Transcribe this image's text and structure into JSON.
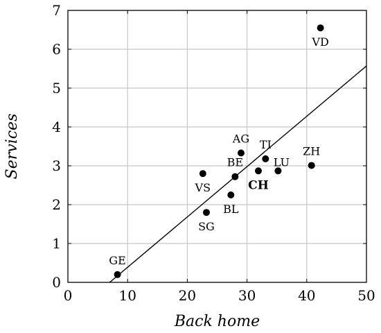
{
  "chart_data": {
    "type": "scatter",
    "title": "",
    "xlabel": "Back home",
    "ylabel": "Services",
    "xlim": [
      0,
      50
    ],
    "ylim": [
      0,
      7
    ],
    "xticks": [
      0,
      10,
      20,
      30,
      40,
      50
    ],
    "yticks": [
      0,
      1,
      2,
      3,
      4,
      5,
      6,
      7
    ],
    "grid": true,
    "points": [
      {
        "label": "GE",
        "x": 8.3,
        "y": 0.2,
        "bold": false,
        "label_pos": "above"
      },
      {
        "label": "SG",
        "x": 23.2,
        "y": 1.8,
        "bold": false,
        "label_pos": "below"
      },
      {
        "label": "BL",
        "x": 27.3,
        "y": 2.25,
        "bold": false,
        "label_pos": "below"
      },
      {
        "label": "VS",
        "x": 22.6,
        "y": 2.8,
        "bold": false,
        "label_pos": "below"
      },
      {
        "label": "BE",
        "x": 28.0,
        "y": 2.72,
        "bold": false,
        "label_pos": "above"
      },
      {
        "label": "CH",
        "x": 31.9,
        "y": 2.87,
        "bold": true,
        "label_pos": "below"
      },
      {
        "label": "LU",
        "x": 35.2,
        "y": 2.87,
        "bold": false,
        "label_pos": "above-right"
      },
      {
        "label": "TI",
        "x": 33.1,
        "y": 3.18,
        "bold": false,
        "label_pos": "above"
      },
      {
        "label": "AG",
        "x": 29.0,
        "y": 3.33,
        "bold": false,
        "label_pos": "above"
      },
      {
        "label": "ZH",
        "x": 40.8,
        "y": 3.01,
        "bold": false,
        "label_pos": "above"
      },
      {
        "label": "VD",
        "x": 42.3,
        "y": 6.55,
        "bold": false,
        "label_pos": "below"
      }
    ],
    "trend_line": {
      "x": [
        7.0,
        50.0
      ],
      "y": [
        0.0,
        5.57
      ]
    }
  }
}
